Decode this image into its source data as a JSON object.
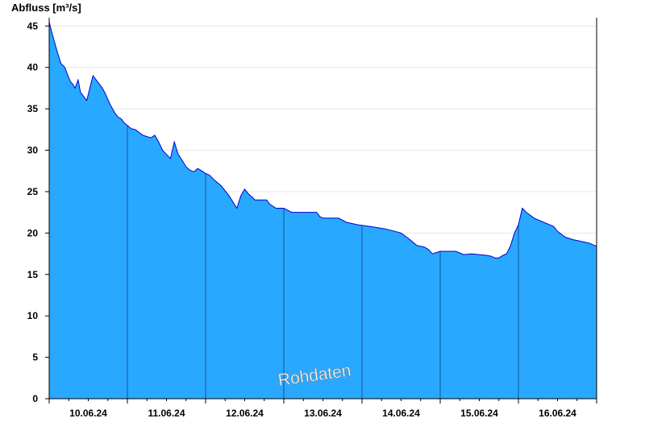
{
  "chart_data": {
    "type": "area",
    "ylabel": "Abfluss [m³/s]",
    "ylim": [
      0,
      46
    ],
    "yticks": [
      0,
      5,
      10,
      15,
      20,
      25,
      30,
      35,
      40,
      45
    ],
    "xlim": [
      0,
      7
    ],
    "day_labels": [
      "10.06.24",
      "11.06.24",
      "12.06.24",
      "13.06.24",
      "14.06.24",
      "15.06.24",
      "16.06.24"
    ],
    "watermark": "Rohdaten",
    "grid": true,
    "colors": {
      "fill": "#29a8ff",
      "line": "#0000cc",
      "grid": "#e6e6e6",
      "divider": "#1a4f99"
    },
    "series": [
      {
        "x": [
          0,
          0.04,
          0.1,
          0.15,
          0.2,
          0.24,
          0.27,
          0.3,
          0.33,
          0.37,
          0.4,
          0.44,
          0.48,
          0.52,
          0.56,
          0.6,
          0.64,
          0.68,
          0.72,
          0.78,
          0.84,
          0.88,
          0.92,
          0.96,
          1.0,
          1.05,
          1.1,
          1.2,
          1.3,
          1.35,
          1.4,
          1.45,
          1.5,
          1.55,
          1.6,
          1.65,
          1.7,
          1.75,
          1.8,
          1.85,
          1.9,
          1.95,
          2.0,
          2.05,
          2.1,
          2.2,
          2.3,
          2.4,
          2.45,
          2.5,
          2.55,
          2.6,
          2.63,
          2.66,
          2.72,
          2.78,
          2.82,
          2.9,
          3.0,
          3.1,
          3.2,
          3.3,
          3.42,
          3.46,
          3.5,
          3.7,
          3.8,
          3.95,
          4.1,
          4.3,
          4.5,
          4.6,
          4.7,
          4.8,
          4.85,
          4.9,
          5.0,
          5.2,
          5.3,
          5.4,
          5.6,
          5.65,
          5.7,
          5.75,
          5.8,
          5.85,
          5.9,
          5.95,
          6.0,
          6.05,
          6.1,
          6.2,
          6.3,
          6.4,
          6.45,
          6.5,
          6.6,
          6.7,
          6.8,
          6.9,
          7.0
        ],
        "y": [
          45.5,
          44,
          42,
          40.5,
          40,
          39,
          38.3,
          38,
          37.5,
          38.5,
          37,
          36.5,
          36,
          37.5,
          39,
          38.5,
          38,
          37.5,
          36.8,
          35.5,
          34.5,
          34,
          33.8,
          33.3,
          33,
          32.6,
          32.5,
          31.8,
          31.5,
          31.8,
          31,
          30,
          29.5,
          29,
          31,
          29.5,
          28.8,
          28,
          27.6,
          27.4,
          27.8,
          27.5,
          27.2,
          27,
          26.5,
          25.7,
          24.5,
          23,
          24.5,
          25.3,
          24.7,
          24.3,
          24,
          24,
          24,
          24,
          23.5,
          23,
          23,
          22.5,
          22.5,
          22.5,
          22.5,
          22,
          21.8,
          21.8,
          21.3,
          21,
          20.8,
          20.5,
          20,
          19.3,
          18.5,
          18.3,
          18,
          17.5,
          17.8,
          17.8,
          17.4,
          17.5,
          17.3,
          17.2,
          17,
          17,
          17.3,
          17.5,
          18.5,
          20,
          21,
          23,
          22.5,
          21.8,
          21.4,
          21,
          20.8,
          20.2,
          19.5,
          19.2,
          19,
          18.8,
          18.4
        ]
      }
    ]
  }
}
